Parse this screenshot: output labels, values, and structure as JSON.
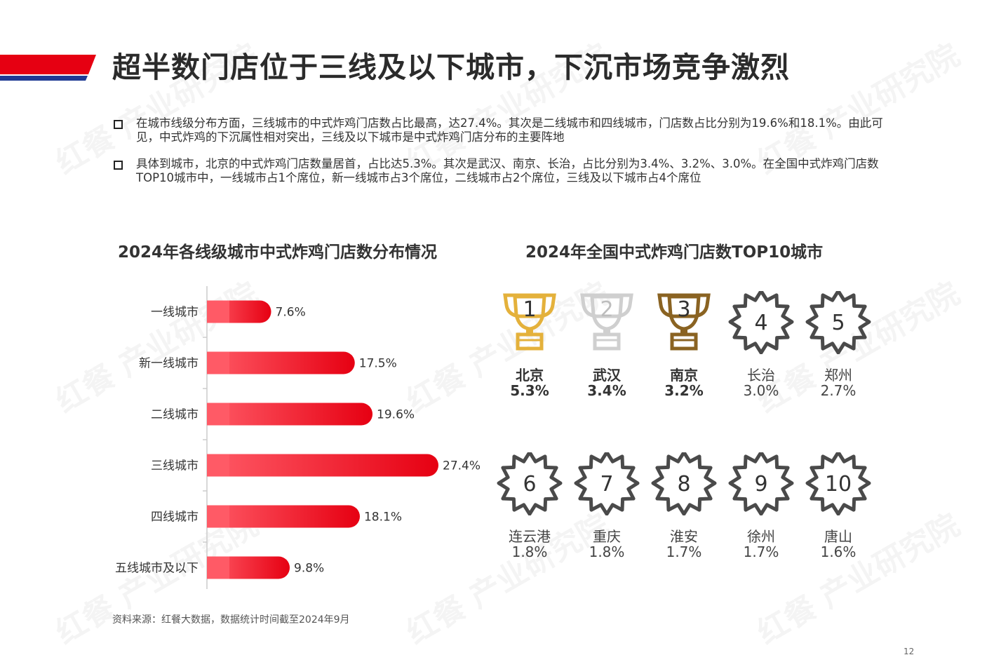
{
  "header": {
    "title": "超半数门店位于三线及以下城市，下沉市场竞争激烈",
    "accent_colors": [
      "#e60012",
      "#1f3a93"
    ]
  },
  "bullets": [
    "在城市线级分布方面，三线城市的中式炸鸡门店数占比最高，达27.4%。其次是二线城市和四线城市，门店数占比分别为19.6%和18.1%。由此可见，中式炸鸡的下沉属性相对突出，三线及以下城市是中式炸鸡门店分布的主要阵地",
    "具体到城市，北京的中式炸鸡门店数量居首，占比达5.3%。其次是武汉、南京、长治，占比分别为3.4%、3.2%、3.0%。在全国中式炸鸡门店数TOP10城市中，一线城市占1个席位，新一线城市占3个席位，二线城市占2个席位，三线及以下城市占4个席位"
  ],
  "left_title": "2024年各线级城市中式炸鸡门店数分布情况",
  "right_title": "2024年全国中式炸鸡门店数TOP10城市",
  "chart_data": {
    "type": "bar",
    "orientation": "horizontal",
    "title": "2024年各线级城市中式炸鸡门店数分布情况",
    "categories": [
      "一线城市",
      "新一线城市",
      "二线城市",
      "三线城市",
      "四线城市",
      "五线城市及以下"
    ],
    "values": [
      7.6,
      17.5,
      19.6,
      27.4,
      18.1,
      9.8
    ],
    "value_labels": [
      "7.6%",
      "17.5%",
      "19.6%",
      "27.4%",
      "18.1%",
      "9.8%"
    ],
    "xlim": [
      0,
      30
    ],
    "grid": false,
    "bar_color": "#e60012"
  },
  "top10": [
    {
      "rank": "1",
      "city": "北京",
      "pct": "5.3%",
      "icon": "gold-trophy-icon",
      "color": "#e4b13b"
    },
    {
      "rank": "2",
      "city": "武汉",
      "pct": "3.4%",
      "icon": "silver-trophy-icon",
      "color": "#cfcfcf"
    },
    {
      "rank": "3",
      "city": "南京",
      "pct": "3.2%",
      "icon": "bronze-trophy-icon",
      "color": "#8a6322"
    },
    {
      "rank": "4",
      "city": "长治",
      "pct": "3.0%",
      "icon": "badge-icon",
      "color": "#4a4a4a"
    },
    {
      "rank": "5",
      "city": "郑州",
      "pct": "2.7%",
      "icon": "badge-icon",
      "color": "#4a4a4a"
    },
    {
      "rank": "6",
      "city": "连云港",
      "pct": "1.8%",
      "icon": "badge-icon",
      "color": "#4a4a4a"
    },
    {
      "rank": "7",
      "city": "重庆",
      "pct": "1.8%",
      "icon": "badge-icon",
      "color": "#4a4a4a"
    },
    {
      "rank": "8",
      "city": "淮安",
      "pct": "1.7%",
      "icon": "badge-icon",
      "color": "#4a4a4a"
    },
    {
      "rank": "9",
      "city": "徐州",
      "pct": "1.7%",
      "icon": "badge-icon",
      "color": "#4a4a4a"
    },
    {
      "rank": "10",
      "city": "唐山",
      "pct": "1.6%",
      "icon": "badge-icon",
      "color": "#4a4a4a"
    }
  ],
  "source": "资料来源：红餐大数据，数据统计时间截至2024年9月",
  "page_number": "12",
  "watermark": "红餐 产业研究院"
}
